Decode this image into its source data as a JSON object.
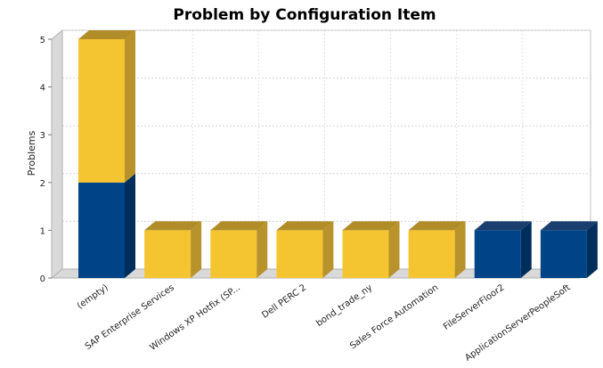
{
  "chart_data": {
    "type": "bar",
    "stacked": true,
    "three_d": true,
    "title": "Problem by Configuration Item",
    "xlabel": "",
    "ylabel": "Problems",
    "ylim": [
      0,
      5
    ],
    "yticks": [
      "0",
      "1",
      "2",
      "3",
      "4",
      "5"
    ],
    "grid": true,
    "legend": "none",
    "categories": [
      "(empty)",
      "SAP Enterprise Services",
      "Windows XP Hotfix (SP...",
      "Dell PERC 2",
      "bond_trade_ny",
      "Sales Force Automation",
      "FileServerFloor2",
      "ApplicationServerPeopleSoft"
    ],
    "series": [
      {
        "values": [
          2,
          0,
          0,
          0,
          0,
          0,
          1,
          1
        ],
        "color": "#004488",
        "side_color": "#002E5C",
        "top_color": "#1A3F6E"
      },
      {
        "values": [
          3,
          1,
          1,
          1,
          1,
          1,
          0,
          0
        ],
        "color": "#F5C431",
        "side_color": "#B8922A",
        "top_color": "#B08D28"
      }
    ]
  }
}
